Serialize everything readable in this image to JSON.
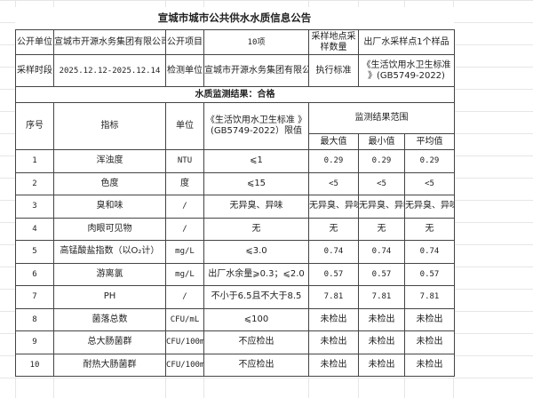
{
  "title": "宣城市城市公共供水水质信息公告",
  "info": {
    "publisher_label": "公开单位",
    "publisher": "宣城市开源水务集团有限公司",
    "items_label": "公开项目",
    "items": "10项",
    "sampling_label": "采样地点采样数量",
    "sampling": "出厂水采样点1个样品",
    "period_label": "采样时段",
    "period": "2025.12.12-2025.12.14",
    "lab_label": "检测单位",
    "lab": "宣城市开源水务集团有限公司",
    "standard_label": "执行标准",
    "standard": "《生活饮用水卫生标准 》(GB5749-2022)"
  },
  "result_banner": "水质监测结果：合格",
  "headers": {
    "no": "序号",
    "indicator": "指标",
    "unit": "单位",
    "limit": "《生活饮用水卫生标准 》(GB5749-2022）限值",
    "range": "监测结果范围",
    "max": "最大值",
    "min": "最小值",
    "avg": "平均值"
  },
  "rows": [
    {
      "no": "1",
      "indicator": "浑浊度",
      "unit": "NTU",
      "limit": "⩽1",
      "max": "0.29",
      "min": "0.29",
      "avg": "0.29"
    },
    {
      "no": "2",
      "indicator": "色度",
      "unit": "度",
      "limit": "⩽15",
      "max": "<5",
      "min": "<5",
      "avg": "<5"
    },
    {
      "no": "3",
      "indicator": "臭和味",
      "unit": "/",
      "limit": "无异臭、异味",
      "max": "无异臭、异味",
      "min": "无异臭、异味",
      "avg": "无异臭、异味"
    },
    {
      "no": "4",
      "indicator": "肉眼可见物",
      "unit": "/",
      "limit": "无",
      "max": "无",
      "min": "无",
      "avg": "无"
    },
    {
      "no": "5",
      "indicator": "高锰酸盐指数（以O₂计）",
      "unit": "mg/L",
      "limit": "⩽3.0",
      "max": "0.74",
      "min": "0.74",
      "avg": "0.74"
    },
    {
      "no": "6",
      "indicator": "游离氯",
      "unit": "mg/L",
      "limit": "出厂水余量⩾0.3；⩽2.0",
      "max": "0.57",
      "min": "0.57",
      "avg": "0.57"
    },
    {
      "no": "7",
      "indicator": "PH",
      "unit": "/",
      "limit": "不小于6.5且不大于8.5",
      "max": "7.81",
      "min": "7.81",
      "avg": "7.81"
    },
    {
      "no": "8",
      "indicator": "菌落总数",
      "unit": "CFU/mL",
      "limit": "⩽100",
      "max": "未检出",
      "min": "未检出",
      "avg": "未检出"
    },
    {
      "no": "9",
      "indicator": "总大肠菌群",
      "unit": "CFU/100mL",
      "limit": "不应检出",
      "max": "未检出",
      "min": "未检出",
      "avg": "未检出"
    },
    {
      "no": "10",
      "indicator": "耐热大肠菌群",
      "unit": "CFU/100mL",
      "limit": "不应检出",
      "max": "未检出",
      "min": "未检出",
      "avg": "未检出"
    }
  ]
}
